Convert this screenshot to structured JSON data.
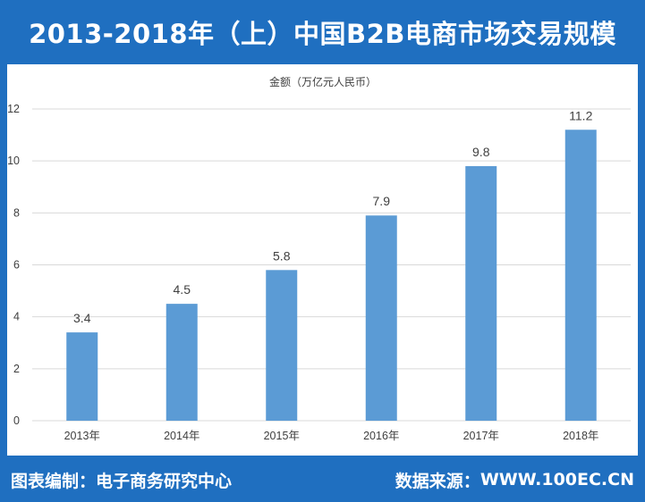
{
  "title": "2013-2018年（上）中国B2B电商市场交易规模",
  "footer": {
    "compiler_label": "图表编制：",
    "compiler_value": "电子商务研究中心",
    "source_label": "数据来源：",
    "source_value": "WWW.100EC.CN"
  },
  "colors": {
    "frame": "#1f6fc0",
    "bar": "#5b9bd5",
    "grid": "#d9d9d9",
    "text": "#404040"
  },
  "chart_data": {
    "type": "bar",
    "ylabel": "金额（万亿元人民币）",
    "categories": [
      "2013年",
      "2014年",
      "2015年",
      "2016年",
      "2017年",
      "2018年"
    ],
    "values": [
      3.4,
      4.5,
      5.8,
      7.9,
      9.8,
      11.2
    ],
    "data_labels": [
      "3.4",
      "4.5",
      "5.8",
      "7.9",
      "9.8",
      "11.2"
    ],
    "ylim": [
      0,
      12
    ],
    "yticks": [
      0,
      2,
      4,
      6,
      8,
      10,
      12
    ],
    "grid": true,
    "legend": "none"
  }
}
